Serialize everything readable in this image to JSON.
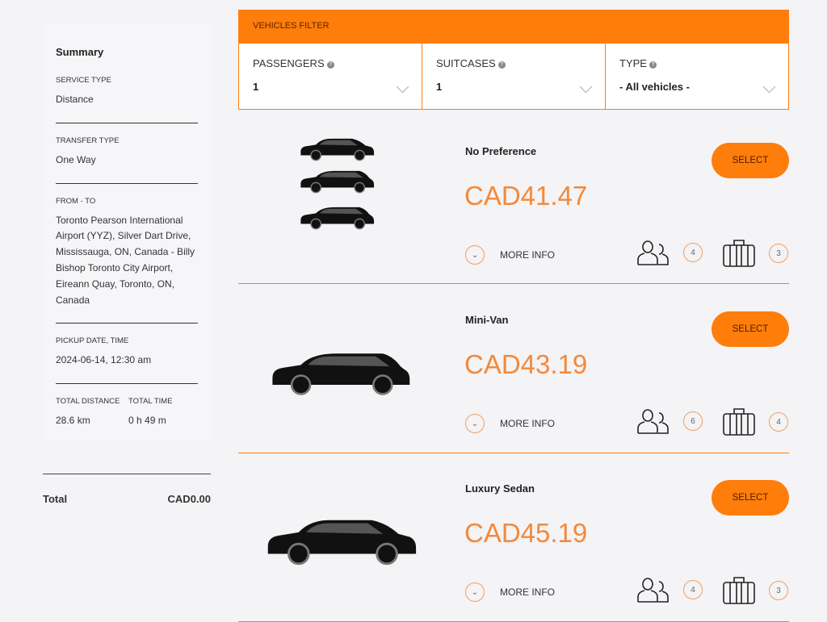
{
  "summary": {
    "title": "Summary",
    "service_type_label": "SERVICE TYPE",
    "service_type": "Distance",
    "transfer_type_label": "TRANSFER TYPE",
    "transfer_type": "One Way",
    "from_to_label": "FROM - TO",
    "from_to": "Toronto Pearson International Airport (YYZ), Silver Dart Drive, Mississauga, ON, Canada - Billy Bishop Toronto City Airport, Eireann Quay, Toronto, ON, Canada",
    "pickup_label": "PICKUP DATE, TIME",
    "pickup": "2024-06-14, 12:30 am",
    "distance_label": "TOTAL DISTANCE",
    "distance": "28.6 km",
    "time_label": "TOTAL TIME",
    "time": "0 h 49 m",
    "total_label": "Total",
    "total": "CAD0.00"
  },
  "filter": {
    "title": "VEHICLES FILTER",
    "passengers_label": "PASSENGERS",
    "passengers": "1",
    "suitcases_label": "SUITCASES",
    "suitcases": "1",
    "type_label": "TYPE",
    "type": "- All vehicles -"
  },
  "accent": "#ff7d0a",
  "vehicles": [
    {
      "name": "No Preference",
      "price": "CAD41.47",
      "select": "SELECT",
      "more": "MORE INFO",
      "passengers": "4",
      "suitcases": "3"
    },
    {
      "name": "Mini-Van",
      "price": "CAD43.19",
      "select": "SELECT",
      "more": "MORE INFO",
      "passengers": "6",
      "suitcases": "4"
    },
    {
      "name": "Luxury Sedan",
      "price": "CAD45.19",
      "select": "SELECT",
      "more": "MORE INFO",
      "passengers": "4",
      "suitcases": "3"
    }
  ]
}
